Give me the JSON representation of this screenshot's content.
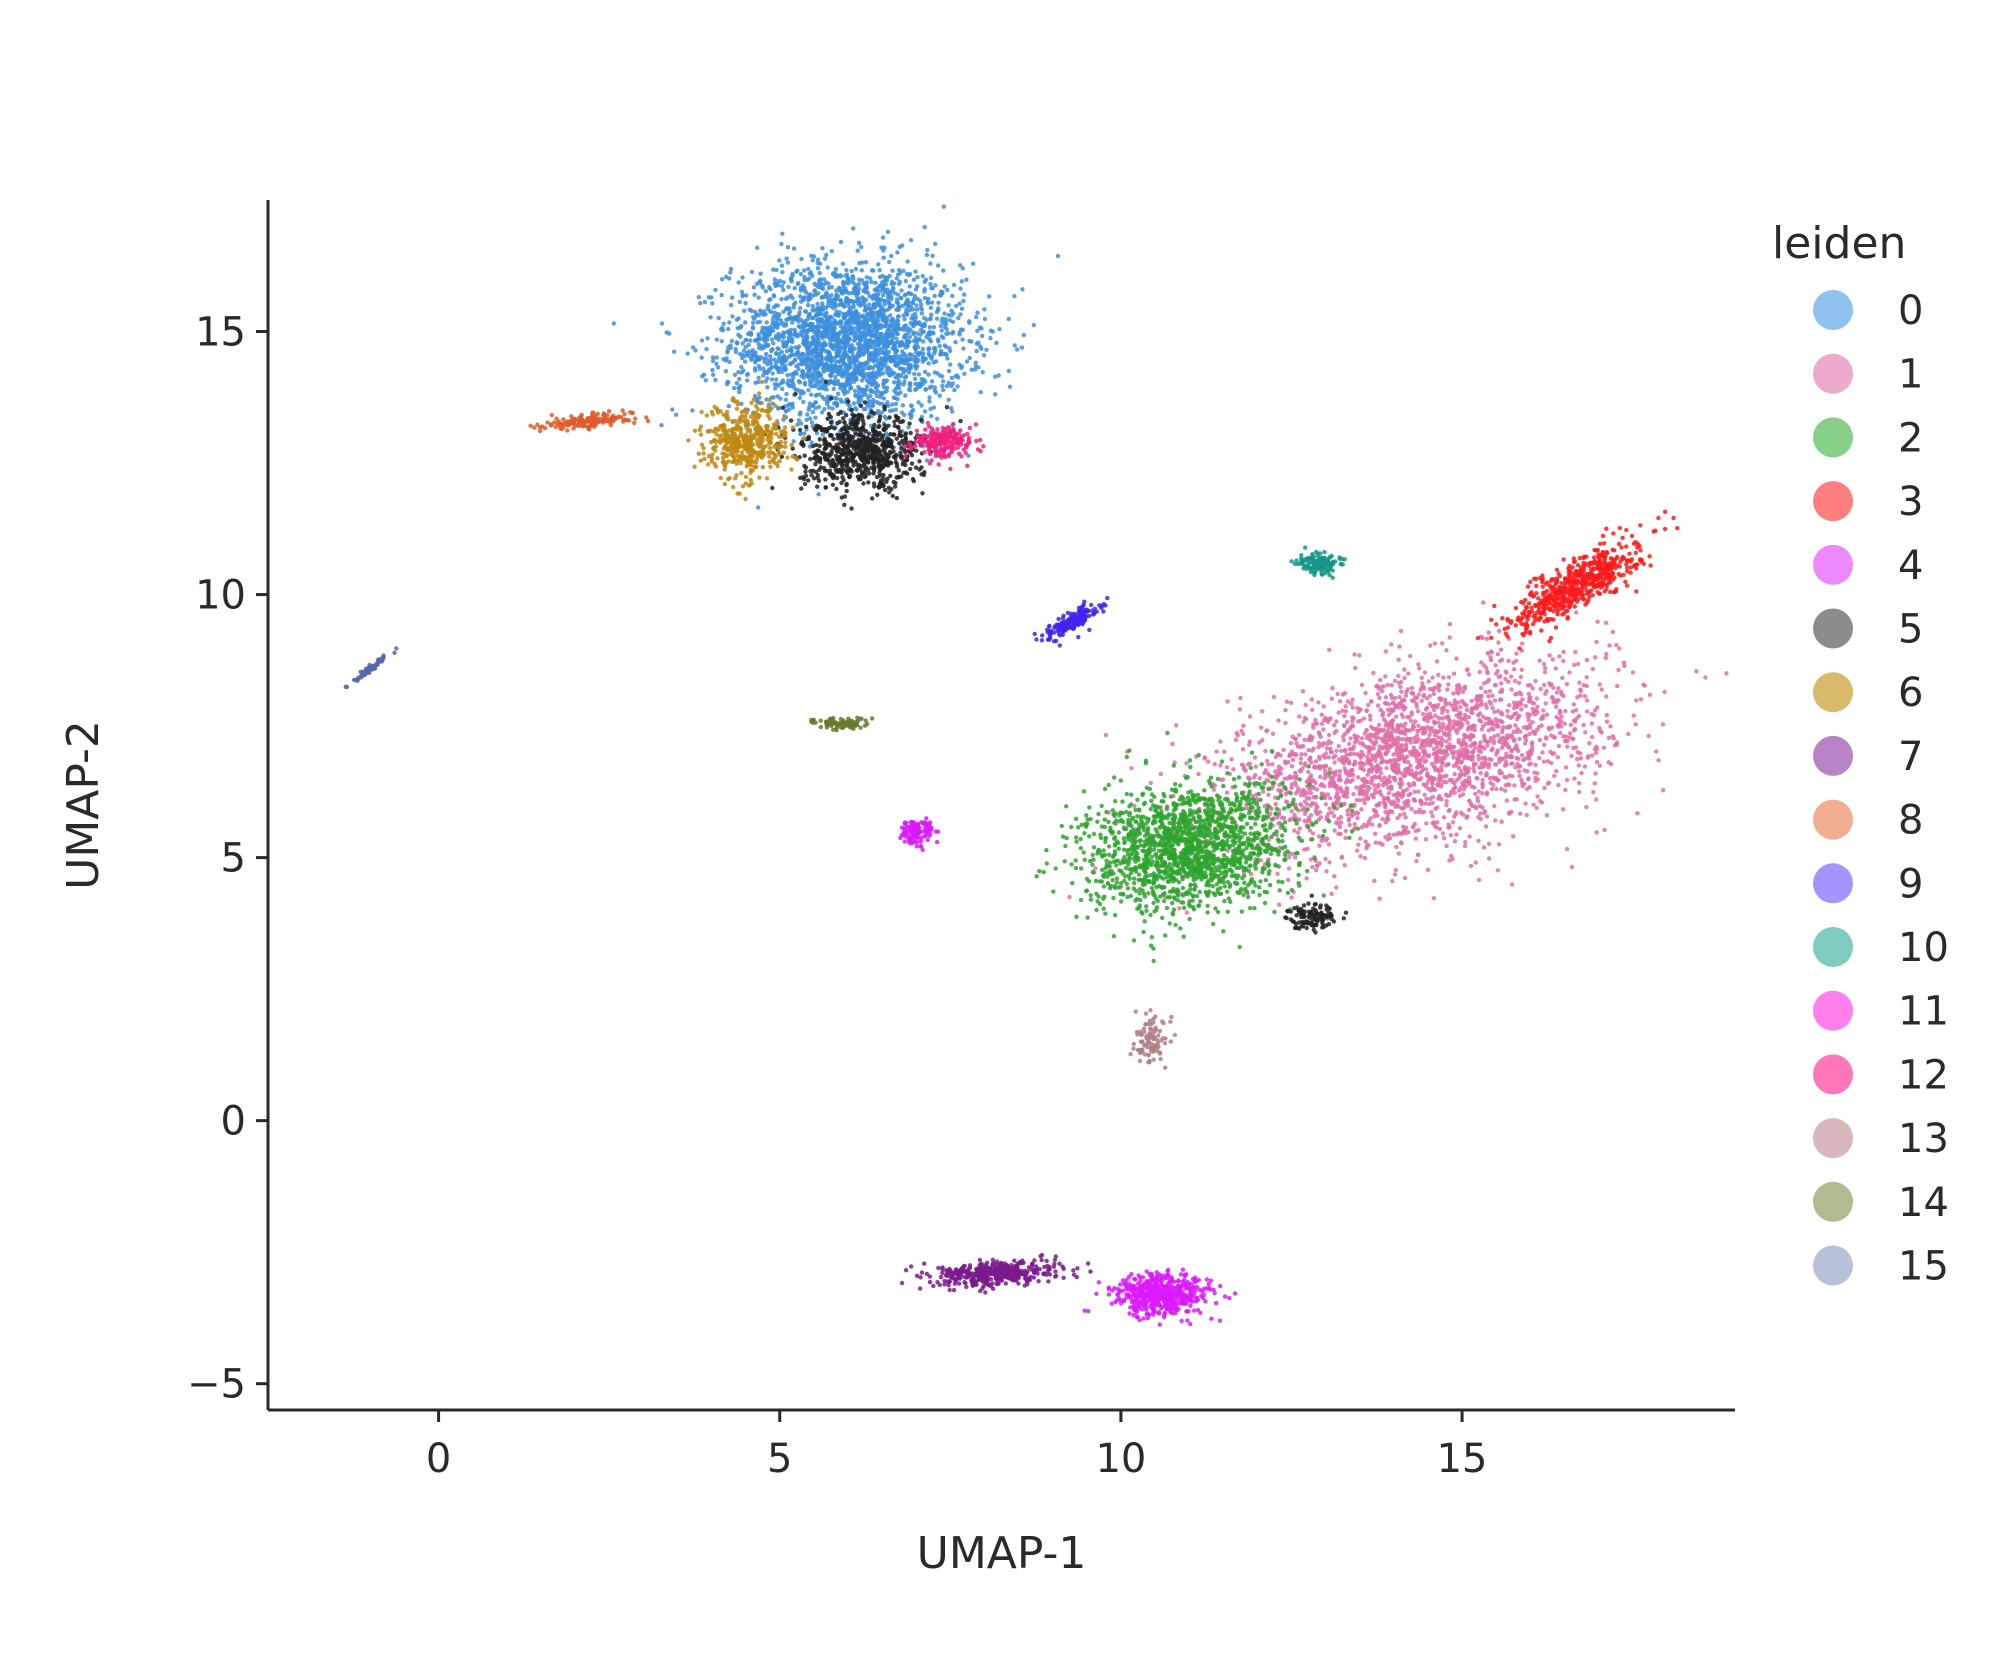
{
  "chart_data": {
    "type": "scatter",
    "title": "",
    "xlabel": "UMAP-1",
    "ylabel": "UMAP-2",
    "xlim": [
      -2.5,
      19
    ],
    "ylim": [
      -5.5,
      17.5
    ],
    "x_ticks": [
      0,
      5,
      10,
      15
    ],
    "y_ticks": [
      -5,
      0,
      5,
      10,
      15
    ],
    "x_tick_labels": [
      "0",
      "5",
      "10",
      "15"
    ],
    "y_tick_labels": [
      "−5",
      "0",
      "5",
      "10",
      "15"
    ],
    "grid": false,
    "legend": {
      "title": "leiden",
      "placement": "right",
      "entries": [
        "0",
        "1",
        "2",
        "3",
        "4",
        "5",
        "6",
        "7",
        "8",
        "9",
        "10",
        "11",
        "12",
        "13",
        "14",
        "15"
      ],
      "colors": [
        "#90c2f0",
        "#eeaacc",
        "#88d088",
        "#ff7f7f",
        "#ee88ff",
        "#8c8c8c",
        "#d9b96a",
        "#b883c6",
        "#f2ae92",
        "#a394ff",
        "#7fccbf",
        "#ff7fec",
        "#ff77b8",
        "#d8b8be",
        "#b0bb90",
        "#b8c1d9"
      ]
    },
    "series": [
      {
        "name": "0",
        "color": "#3d8fde",
        "clusters": [
          {
            "cx": 6.0,
            "cy": 14.8,
            "sx": 0.85,
            "sy": 0.75,
            "n": 2600
          }
        ]
      },
      {
        "name": "1",
        "color": "#e06ea8",
        "clusters": [
          {
            "cx": 14.3,
            "cy": 6.9,
            "sx": 1.4,
            "sy": 0.9,
            "n": 2400,
            "rho": 0.45
          }
        ]
      },
      {
        "name": "2",
        "color": "#2ea52e",
        "clusters": [
          {
            "cx": 11.0,
            "cy": 5.2,
            "sx": 0.75,
            "sy": 0.6,
            "n": 1700,
            "rho": 0.2
          }
        ]
      },
      {
        "name": "3",
        "color": "#ff1a1a",
        "clusters": [
          {
            "cx": 16.7,
            "cy": 10.2,
            "sx": 0.45,
            "sy": 0.4,
            "n": 600,
            "rho": 0.8
          }
        ]
      },
      {
        "name": "4",
        "color": "#d91aff",
        "clusters": [
          {
            "cx": 10.6,
            "cy": -3.3,
            "sx": 0.35,
            "sy": 0.2,
            "n": 550
          },
          {
            "cx": 7.0,
            "cy": 5.5,
            "sx": 0.12,
            "sy": 0.12,
            "n": 120
          }
        ]
      },
      {
        "name": "5",
        "color": "#222222",
        "clusters": [
          {
            "cx": 6.2,
            "cy": 12.7,
            "sx": 0.45,
            "sy": 0.35,
            "n": 700
          },
          {
            "cx": 12.8,
            "cy": 3.9,
            "sx": 0.18,
            "sy": 0.12,
            "n": 120
          }
        ]
      },
      {
        "name": "6",
        "color": "#c08a10",
        "clusters": [
          {
            "cx": 4.5,
            "cy": 12.9,
            "sx": 0.3,
            "sy": 0.35,
            "n": 450
          }
        ]
      },
      {
        "name": "7",
        "color": "#7a1a8e",
        "clusters": [
          {
            "cx": 8.2,
            "cy": -2.9,
            "sx": 0.45,
            "sy": 0.12,
            "n": 420,
            "rho": 0.3
          }
        ]
      },
      {
        "name": "8",
        "color": "#e05a2a",
        "clusters": [
          {
            "cx": 2.2,
            "cy": 13.3,
            "sx": 0.35,
            "sy": 0.08,
            "n": 160,
            "rho": 0.6
          }
        ]
      },
      {
        "name": "9",
        "color": "#4422ee",
        "clusters": [
          {
            "cx": 9.3,
            "cy": 9.5,
            "sx": 0.18,
            "sy": 0.15,
            "n": 180,
            "rho": 0.8
          }
        ]
      },
      {
        "name": "10",
        "color": "#169688",
        "clusters": [
          {
            "cx": 12.9,
            "cy": 10.6,
            "sx": 0.15,
            "sy": 0.1,
            "n": 140
          }
        ]
      },
      {
        "name": "11",
        "color": "#e01ae0",
        "clusters": []
      },
      {
        "name": "12",
        "color": "#f0207e",
        "clusters": [
          {
            "cx": 7.4,
            "cy": 12.9,
            "sx": 0.22,
            "sy": 0.15,
            "n": 220
          }
        ]
      },
      {
        "name": "13",
        "color": "#b07f88",
        "clusters": [
          {
            "cx": 10.45,
            "cy": 1.5,
            "sx": 0.12,
            "sy": 0.2,
            "n": 100
          }
        ]
      },
      {
        "name": "14",
        "color": "#667a2e",
        "clusters": [
          {
            "cx": 5.9,
            "cy": 7.55,
            "sx": 0.2,
            "sy": 0.06,
            "n": 90
          }
        ]
      },
      {
        "name": "15",
        "color": "#5566aa",
        "clusters": [
          {
            "cx": -1.0,
            "cy": 8.6,
            "sx": 0.15,
            "sy": 0.15,
            "n": 60,
            "rho": 0.97
          }
        ]
      }
    ]
  }
}
